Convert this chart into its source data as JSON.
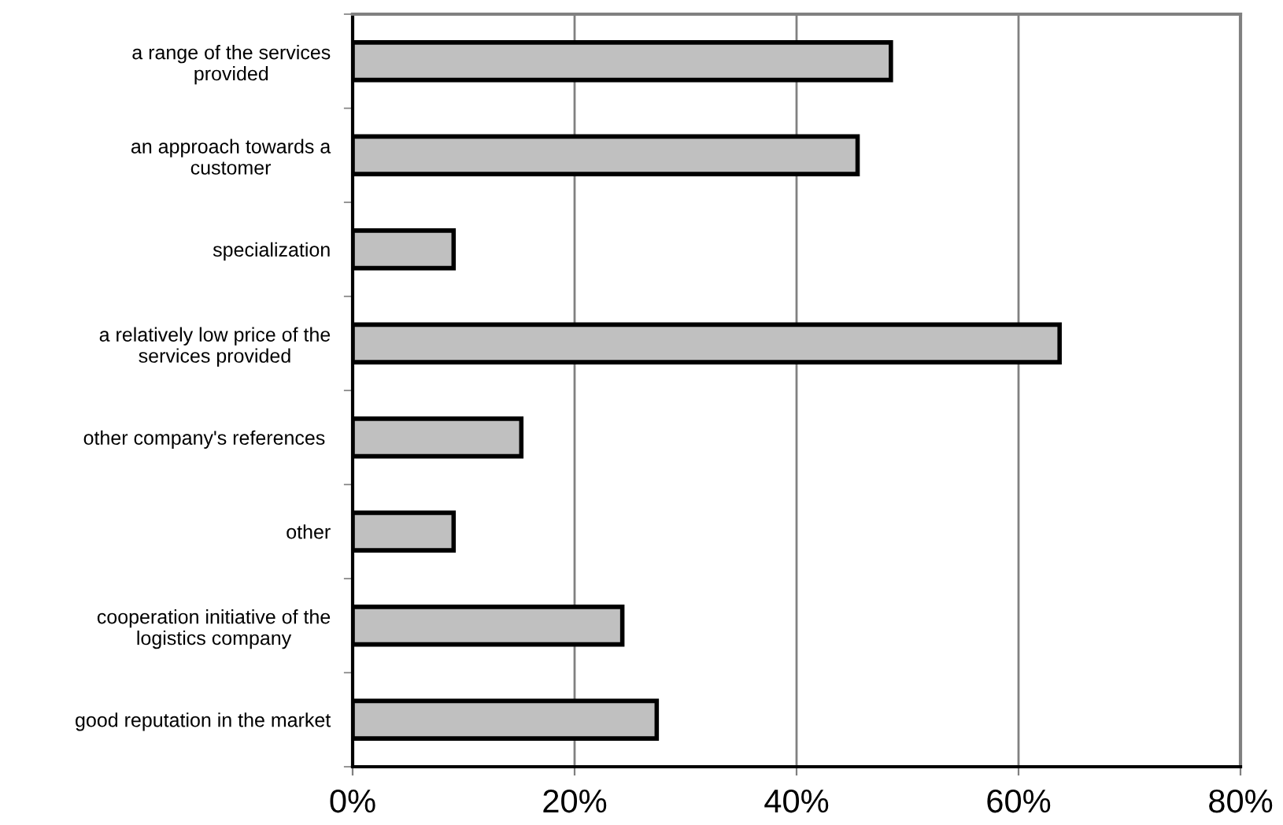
{
  "chart_data": {
    "type": "bar",
    "orientation": "horizontal",
    "categories": [
      "a range of the services\nprovided",
      "an approach towards a\ncustomer",
      "specialization",
      "a relatively low price of the\nservices provided",
      "other company's references ",
      "other",
      "cooperation initiative of the\nlogistics company",
      "good reputation in the market"
    ],
    "values": [
      48.5,
      45.5,
      9.1,
      63.7,
      15.2,
      9.1,
      24.3,
      27.4
    ],
    "color": "#c0c0c0",
    "xlim": [
      0,
      80
    ],
    "xticks": [
      {
        "value": 0,
        "label": "0%"
      },
      {
        "value": 20,
        "label": "20%"
      },
      {
        "value": 40,
        "label": "40%"
      },
      {
        "value": 60,
        "label": "60%"
      },
      {
        "value": 80,
        "label": "80%"
      }
    ],
    "grid": "x"
  }
}
